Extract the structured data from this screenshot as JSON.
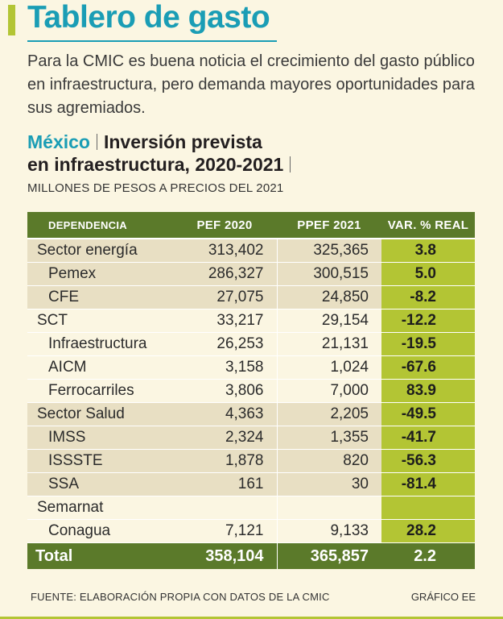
{
  "title": "Tablero de gasto",
  "intro": "Para la CMIC es buena noticia el crecimiento del gasto público en infraestructura, pero demanda mayores oportunidades para sus agremiados.",
  "chart": {
    "country": "México",
    "title_line1": "Inversión prevista",
    "title_line2": "en infraestructura, 2020-2021",
    "subtitle": "MILLONES DE PESOS A PRECIOS DEL 2021"
  },
  "colors": {
    "accent": "#1a9db5",
    "header_green": "#5b7a2a",
    "var_green": "#b3c534",
    "row_gray": "#e8dfc3",
    "background": "#fbf6e2"
  },
  "table": {
    "headers": [
      "DEPENDENCIA",
      "PEF 2020",
      "PPEF 2021",
      "VAR. % REAL"
    ],
    "rows": [
      {
        "name": "Sector energía",
        "pef2020": "313,402",
        "ppef2021": "325,365",
        "var": "3.8",
        "indent": false,
        "shade": "gray"
      },
      {
        "name": "Pemex",
        "pef2020": "286,327",
        "ppef2021": "300,515",
        "var": "5.0",
        "indent": true,
        "shade": "gray"
      },
      {
        "name": "CFE",
        "pef2020": "27,075",
        "ppef2021": "24,850",
        "var": "-8.2",
        "indent": true,
        "shade": "gray"
      },
      {
        "name": "SCT",
        "pef2020": "33,217",
        "ppef2021": "29,154",
        "var": "-12.2",
        "indent": false,
        "shade": "light"
      },
      {
        "name": "Infraestructura",
        "pef2020": "26,253",
        "ppef2021": "21,131",
        "var": "-19.5",
        "indent": true,
        "shade": "light"
      },
      {
        "name": "AICM",
        "pef2020": "3,158",
        "ppef2021": "1,024",
        "var": "-67.6",
        "indent": true,
        "shade": "light"
      },
      {
        "name": "Ferrocarriles",
        "pef2020": "3,806",
        "ppef2021": "7,000",
        "var": "83.9",
        "indent": true,
        "shade": "light"
      },
      {
        "name": "Sector Salud",
        "pef2020": "4,363",
        "ppef2021": "2,205",
        "var": "-49.5",
        "indent": false,
        "shade": "gray"
      },
      {
        "name": "IMSS",
        "pef2020": "2,324",
        "ppef2021": "1,355",
        "var": "-41.7",
        "indent": true,
        "shade": "gray"
      },
      {
        "name": "ISSSTE",
        "pef2020": "1,878",
        "ppef2021": "820",
        "var": "-56.3",
        "indent": true,
        "shade": "gray"
      },
      {
        "name": "SSA",
        "pef2020": "161",
        "ppef2021": "30",
        "var": "-81.4",
        "indent": true,
        "shade": "gray"
      },
      {
        "name": "Semarnat",
        "pef2020": "",
        "ppef2021": "",
        "var": "",
        "indent": false,
        "shade": "light"
      },
      {
        "name": "Conagua",
        "pef2020": "7,121",
        "ppef2021": "9,133",
        "var": "28.2",
        "indent": true,
        "shade": "light"
      }
    ],
    "total": {
      "name": "Total",
      "pef2020": "358,104",
      "ppef2021": "365,857",
      "var": "2.2"
    }
  },
  "footer": {
    "source": "FUENTE: ELABORACIÓN PROPIA CON DATOS DE LA CMIC",
    "credit": "GRÁFICO EE"
  }
}
